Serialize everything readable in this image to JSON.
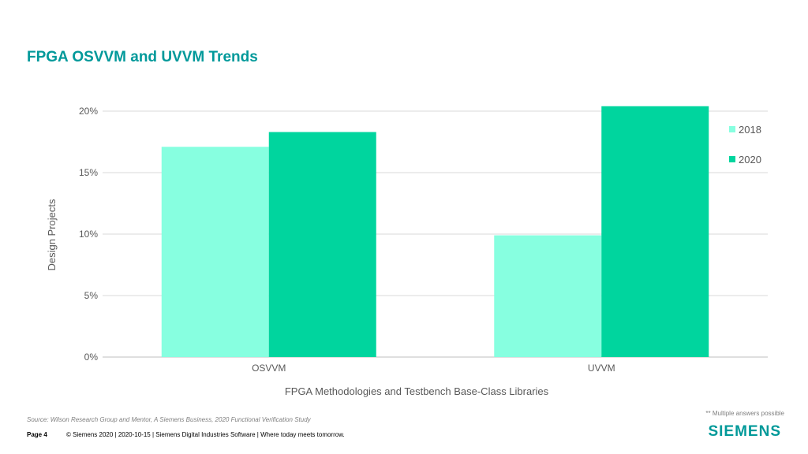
{
  "slide": {
    "title": "FPGA OSVVM and UVVM Trends",
    "source": "Source:  Wilson Research Group and Mentor,  A Siemens Business, 2020 Functional Verification Study",
    "footnote": "** Multiple answers possible",
    "page": "Page 4",
    "footer_text": "© Siemens 2020 | 2020-10-15 | Siemens Digital Industries Software | Where today meets tomorrow.",
    "logo": "SIEMENS"
  },
  "colors": {
    "title": "#00999a",
    "series_2018": "#87ffe0",
    "series_2020": "#00d59e",
    "logo": "#009999"
  },
  "chart_data": {
    "type": "bar",
    "categories": [
      "OSVVM",
      "UVVM"
    ],
    "series": [
      {
        "name": "2018",
        "values": [
          17.1,
          9.9
        ]
      },
      {
        "name": "2020",
        "values": [
          18.3,
          20.4
        ]
      }
    ],
    "xlabel": "FPGA Methodologies and Testbench Base-Class Libraries",
    "ylabel": "Design Projects",
    "ylim": [
      0,
      20
    ],
    "yticks": [
      "0%",
      "5%",
      "10%",
      "15%",
      "20%"
    ],
    "ytick_values": [
      0,
      5,
      10,
      15,
      20
    ],
    "grid": true,
    "legend_position": "right"
  }
}
